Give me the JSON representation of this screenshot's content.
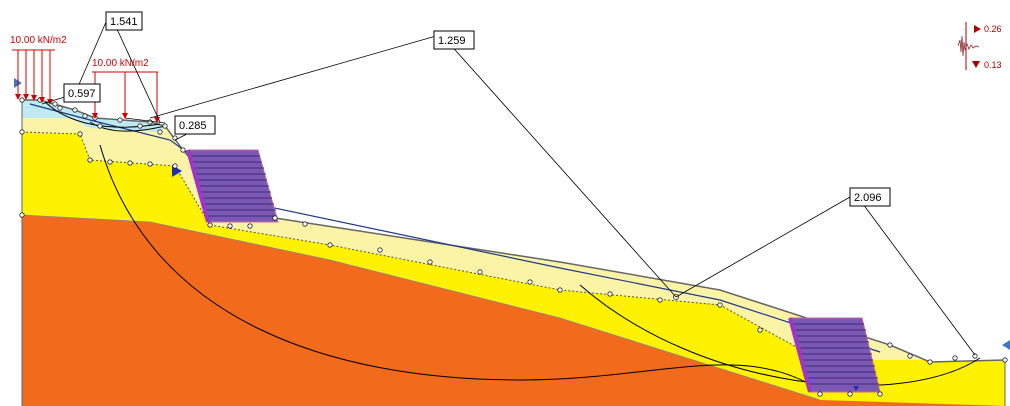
{
  "colors": {
    "layer_top": "#bfeaf2",
    "layer_soft": "#fbf3a6",
    "layer_yellow": "#fff200",
    "layer_orange": "#f26a1b",
    "wall_fill": "#7a58b4",
    "wall_stripe": "#5a3b9a",
    "load_red": "#d40000",
    "node_fill": "#ffffff",
    "node_stroke": "#222222"
  },
  "loads": {
    "load_1": "10.00 kN/m2",
    "load_2": "10.00 kN/m2"
  },
  "safety_factors": {
    "fs_1": "1.541",
    "fs_2": "0.597",
    "fs_3": "0.285",
    "fs_4": "1.259",
    "fs_5": "2.096"
  },
  "seismic": {
    "up_value": "0.26",
    "down_value": "0.13"
  }
}
